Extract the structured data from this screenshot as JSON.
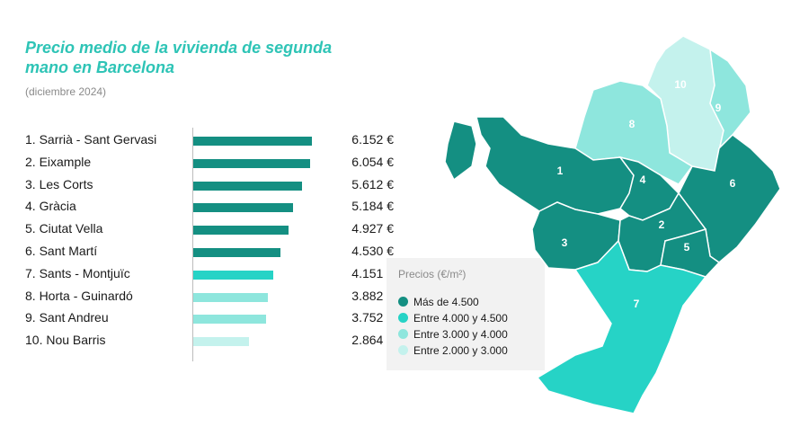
{
  "header": {
    "title": "Precio medio de la vivienda de segunda mano en Barcelona",
    "subtitle": "(diciembre 2024)"
  },
  "colors": {
    "tier1": "#148f82",
    "tier2": "#26d3c6",
    "tier3": "#8ee6dd",
    "tier4": "#c4f2ed"
  },
  "chart_data": {
    "type": "bar",
    "orientation": "horizontal",
    "categories": [
      "1. Sarrià - Sant Gervasi",
      "2. Eixample",
      "3. Les Corts",
      "4. Gràcia",
      "5. Ciutat Vella",
      "6. Sant Martí",
      "7. Sants - Montjuïc",
      "8. Horta - Guinardó",
      "9. Sant Andreu",
      "10. Nou Barris"
    ],
    "values": [
      6152,
      6054,
      5612,
      5184,
      4927,
      4530,
      4151,
      3882,
      3752,
      2864
    ],
    "value_labels": [
      "6.152 €",
      "6.054 €",
      "5.612 €",
      "5.184 €",
      "4.927 €",
      "4.530 €",
      "4.151 €",
      "3.882 €",
      "3.752 €",
      "2.864 €"
    ],
    "tiers": [
      1,
      1,
      1,
      1,
      1,
      1,
      2,
      3,
      3,
      4
    ],
    "title": "Precio medio de la vivienda de segunda mano en Barcelona",
    "xlim": [
      0,
      6300
    ]
  },
  "legend": {
    "title": "Precios (€/m²)",
    "items": [
      {
        "label": "Más de 4.500",
        "tier": 1
      },
      {
        "label": "Entre 4.000 y 4.500",
        "tier": 2
      },
      {
        "label": "Entre 3.000 y 4.000",
        "tier": 3
      },
      {
        "label": "Entre 2.000 y 3.000",
        "tier": 4
      }
    ]
  },
  "map": {
    "district_labels": [
      "1",
      "2",
      "3",
      "4",
      "5",
      "6",
      "7",
      "8",
      "9",
      "10"
    ]
  }
}
